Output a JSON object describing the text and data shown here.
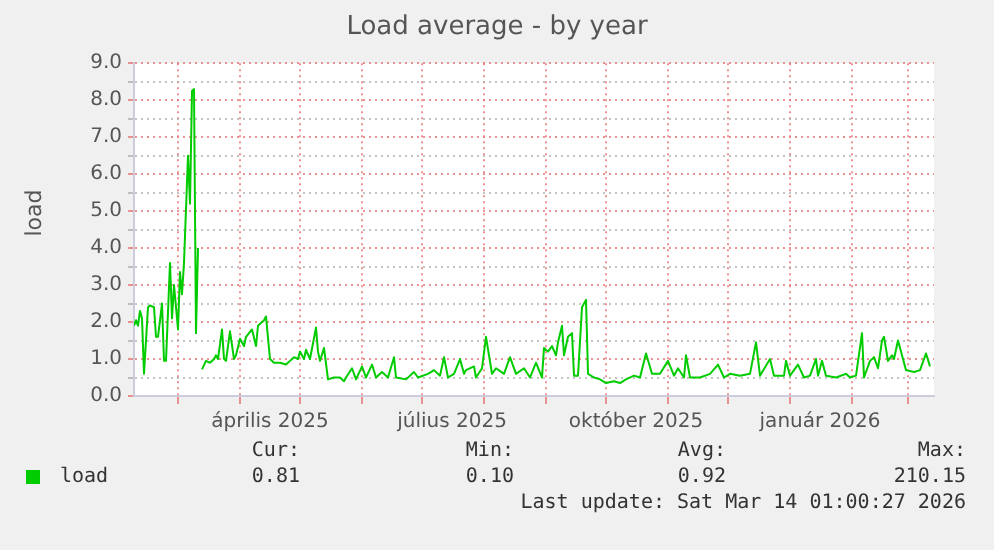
{
  "chart_data": {
    "type": "line",
    "title": "Load average - by year",
    "ylabel": "load",
    "x": [
      "2025-02-07",
      "2025-02-08",
      "2025-02-09",
      "2025-02-10",
      "2025-02-11",
      "2025-02-12",
      "2025-02-14",
      "2025-02-15",
      "2025-02-17",
      "2025-02-18",
      "2025-02-19",
      "2025-02-21",
      "2025-02-22",
      "2025-02-23",
      "2025-02-25",
      "2025-02-26",
      "2025-02-27",
      "2025-03-01",
      "2025-03-02",
      "2025-03-03",
      "2025-03-04",
      "2025-03-06",
      "2025-03-07",
      "2025-03-08",
      "2025-03-09",
      "2025-03-10",
      "2025-03-11",
      "2025-03-12",
      "2025-03-13",
      "2025-03-15",
      "2025-03-17",
      "2025-03-19",
      "2025-03-20",
      "2025-03-21",
      "2025-03-23",
      "2025-03-24",
      "2025-03-25",
      "2025-03-27",
      "2025-03-29",
      "2025-03-30",
      "2025-04-01",
      "2025-04-03",
      "2025-04-04",
      "2025-04-07",
      "2025-04-09",
      "2025-04-10",
      "2025-04-13",
      "2025-04-14",
      "2025-04-16",
      "2025-04-18",
      "2025-04-21",
      "2025-04-24",
      "2025-04-26",
      "2025-04-28",
      "2025-04-30",
      "2025-05-01",
      "2025-05-03",
      "2025-05-04",
      "2025-05-06",
      "2025-05-09",
      "2025-05-10",
      "2025-05-11",
      "2025-05-13",
      "2025-05-15",
      "2025-05-18",
      "2025-05-21",
      "2025-05-23",
      "2025-05-24",
      "2025-05-27",
      "2025-05-29",
      "2025-06-01",
      "2025-06-03",
      "2025-06-06",
      "2025-06-08",
      "2025-06-11",
      "2025-06-14",
      "2025-06-17",
      "2025-06-18",
      "2025-06-23",
      "2025-06-27",
      "2025-06-29",
      "2025-07-04",
      "2025-07-07",
      "2025-07-10",
      "2025-07-12",
      "2025-07-14",
      "2025-07-17",
      "2025-07-20",
      "2025-07-22",
      "2025-07-23",
      "2025-07-27",
      "2025-07-28",
      "2025-07-31",
      "2025-08-02",
      "2025-08-05",
      "2025-08-07",
      "2025-08-11",
      "2025-08-14",
      "2025-08-17",
      "2025-08-21",
      "2025-08-24",
      "2025-08-27",
      "2025-08-30",
      "2025-08-31",
      "2025-09-02",
      "2025-09-04",
      "2025-09-06",
      "2025-09-07",
      "2025-09-09",
      "2025-09-10",
      "2025-09-12",
      "2025-09-14",
      "2025-09-15",
      "2025-09-17",
      "2025-09-19",
      "2025-09-21",
      "2025-09-22",
      "2025-09-25",
      "2025-09-28",
      "2025-10-01",
      "2025-10-05",
      "2025-10-08",
      "2025-10-11",
      "2025-10-15",
      "2025-10-18",
      "2025-10-21",
      "2025-10-24",
      "2025-10-28",
      "2025-11-01",
      "2025-11-04",
      "2025-11-06",
      "2025-11-09",
      "2025-11-10",
      "2025-11-12",
      "2025-11-17",
      "2025-11-22",
      "2025-11-26",
      "2025-11-29",
      "2025-12-02",
      "2025-12-07",
      "2025-12-12",
      "2025-12-15",
      "2025-12-17",
      "2025-12-22",
      "2025-12-24",
      "2025-12-29",
      "2025-12-30",
      "2026-01-01",
      "2026-01-05",
      "2026-01-08",
      "2026-01-11",
      "2026-01-14",
      "2026-01-15",
      "2026-01-17",
      "2026-01-19",
      "2026-01-24",
      "2026-01-29",
      "2026-01-31",
      "2026-02-03",
      "2026-02-06",
      "2026-02-07",
      "2026-02-10",
      "2026-02-12",
      "2026-02-14",
      "2026-02-16",
      "2026-02-17",
      "2026-02-19",
      "2026-02-21",
      "2026-02-22",
      "2026-02-24",
      "2026-02-26",
      "2026-02-28",
      "2026-03-04",
      "2026-03-07",
      "2026-03-10",
      "2026-03-12"
    ],
    "series": [
      {
        "name": "load",
        "color": "#00cc00",
        "values": [
          1.9,
          2.05,
          1.9,
          2.3,
          2.1,
          0.6,
          2.4,
          2.45,
          2.4,
          1.6,
          1.6,
          2.5,
          0.95,
          0.95,
          3.6,
          2.1,
          3.0,
          1.8,
          3.35,
          2.75,
          3.6,
          6.5,
          5.2,
          8.25,
          8.3,
          1.7,
          4.0,
          null,
          0.72,
          0.95,
          0.9,
          1.0,
          1.1,
          1.0,
          1.8,
          1.0,
          0.95,
          1.75,
          1.0,
          1.1,
          1.55,
          1.35,
          1.6,
          1.8,
          1.35,
          1.9,
          2.05,
          2.15,
          1.0,
          0.9,
          0.9,
          0.85,
          0.95,
          1.05,
          1.0,
          1.2,
          1.0,
          1.25,
          1.0,
          1.85,
          1.2,
          0.95,
          1.3,
          0.45,
          0.5,
          0.5,
          0.4,
          0.5,
          0.75,
          0.45,
          0.8,
          0.5,
          0.85,
          0.5,
          0.65,
          0.5,
          1.05,
          0.5,
          0.45,
          0.65,
          0.5,
          0.6,
          0.7,
          0.55,
          1.05,
          0.5,
          0.6,
          1.0,
          0.6,
          0.7,
          0.8,
          0.5,
          0.75,
          1.6,
          0.6,
          0.75,
          0.6,
          1.05,
          0.6,
          0.75,
          0.5,
          0.9,
          0.5,
          1.3,
          1.2,
          1.35,
          1.1,
          1.45,
          1.9,
          1.1,
          1.6,
          1.7,
          0.55,
          0.55,
          2.4,
          2.6,
          0.6,
          0.5,
          0.45,
          0.35,
          0.4,
          0.35,
          0.45,
          0.55,
          0.5,
          1.15,
          0.6,
          0.6,
          0.95,
          0.55,
          0.75,
          0.5,
          1.1,
          0.5,
          0.5,
          0.6,
          0.85,
          0.5,
          0.6,
          0.55,
          0.6,
          1.45,
          0.55,
          1.0,
          0.55,
          0.55,
          0.95,
          0.55,
          0.85,
          0.5,
          0.55,
          1.0,
          0.55,
          0.95,
          0.55,
          0.5,
          0.6,
          0.5,
          0.55,
          1.7,
          0.5,
          0.95,
          1.05,
          0.75,
          1.5,
          1.6,
          0.95,
          1.1,
          1.0,
          1.5,
          1.1,
          0.7,
          0.65,
          0.7,
          1.15,
          0.8
        ]
      }
    ],
    "xlim": [
      "2025-02-07",
      "2026-03-14"
    ],
    "xticks": [
      {
        "value": "2025-03-01",
        "label": null
      },
      {
        "value": "2025-04-01",
        "label": null
      },
      {
        "value": "2025-04-16",
        "label": "április 2025"
      },
      {
        "value": "2025-05-01",
        "label": null
      },
      {
        "value": "2025-06-01",
        "label": null
      },
      {
        "value": "2025-07-01",
        "label": null
      },
      {
        "value": "2025-07-16",
        "label": "július 2025"
      },
      {
        "value": "2025-08-01",
        "label": null
      },
      {
        "value": "2025-09-01",
        "label": null
      },
      {
        "value": "2025-10-01",
        "label": null
      },
      {
        "value": "2025-10-16",
        "label": "október 2025"
      },
      {
        "value": "2025-11-01",
        "label": null
      },
      {
        "value": "2025-12-01",
        "label": null
      },
      {
        "value": "2026-01-01",
        "label": null
      },
      {
        "value": "2026-01-16",
        "label": "január 2026"
      },
      {
        "value": "2026-02-01",
        "label": null
      },
      {
        "value": "2026-03-01",
        "label": null
      }
    ],
    "ylim": [
      0,
      9
    ],
    "yticks": [
      {
        "value": 0,
        "label": "0.0"
      },
      {
        "value": 0.5,
        "label": null
      },
      {
        "value": 1,
        "label": "1.0"
      },
      {
        "value": 1.5,
        "label": null
      },
      {
        "value": 2,
        "label": "2.0"
      },
      {
        "value": 2.5,
        "label": null
      },
      {
        "value": 3,
        "label": "3.0"
      },
      {
        "value": 3.5,
        "label": null
      },
      {
        "value": 4,
        "label": "4.0"
      },
      {
        "value": 4.5,
        "label": null
      },
      {
        "value": 5,
        "label": "5.0"
      },
      {
        "value": 5.5,
        "label": null
      },
      {
        "value": 6,
        "label": "6.0"
      },
      {
        "value": 6.5,
        "label": null
      },
      {
        "value": 7,
        "label": "7.0"
      },
      {
        "value": 7.5,
        "label": null
      },
      {
        "value": 8,
        "label": "8.0"
      },
      {
        "value": 8.5,
        "label": null
      },
      {
        "value": 9,
        "label": "9.0"
      }
    ],
    "grid": true,
    "legend": "bottom left",
    "line_style": "solid",
    "marker": "none",
    "annotations": [
      "Cur:",
      "Min:",
      "Avg:",
      "Max:",
      "0.81",
      "0.10",
      "0.92",
      "210.15",
      "Last update: Sat Mar 14 01:00:27 2026"
    ]
  }
}
